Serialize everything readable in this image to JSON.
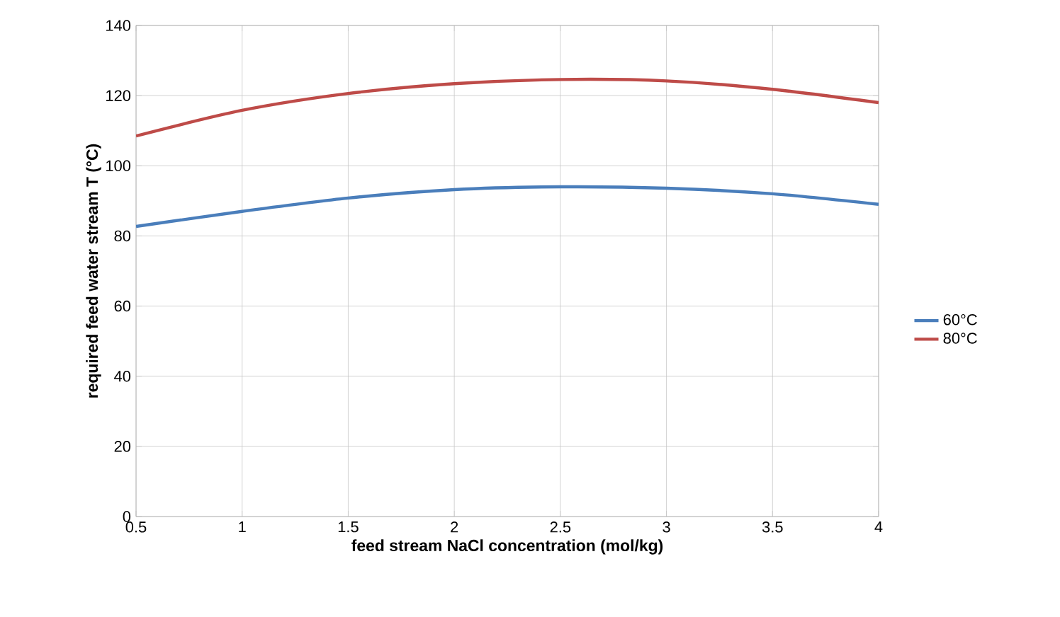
{
  "chart_data": {
    "type": "line",
    "xlabel": "feed stream NaCl concentration (mol/kg)",
    "ylabel": "required feed water stream T (°C)",
    "x": [
      0.5,
      1,
      1.5,
      2,
      2.5,
      3,
      3.5,
      4
    ],
    "series": [
      {
        "name": "60°C",
        "color": "#4a7ebb",
        "values": [
          82.7,
          87,
          90.8,
          93.2,
          94,
          93.6,
          92,
          89
        ]
      },
      {
        "name": "80°C",
        "color": "#be4b48",
        "values": [
          108.5,
          115.8,
          120.6,
          123.4,
          124.6,
          124.2,
          121.8,
          118
        ]
      }
    ],
    "xlim": [
      0.5,
      4
    ],
    "xticks": [
      0.5,
      1,
      1.5,
      2,
      2.5,
      3,
      3.5,
      4
    ],
    "ylim": [
      0,
      140
    ],
    "yticks": [
      0,
      20,
      40,
      60,
      80,
      100,
      120,
      140
    ],
    "grid": true,
    "legend": "right",
    "marker": "none",
    "line_style": "solid"
  }
}
